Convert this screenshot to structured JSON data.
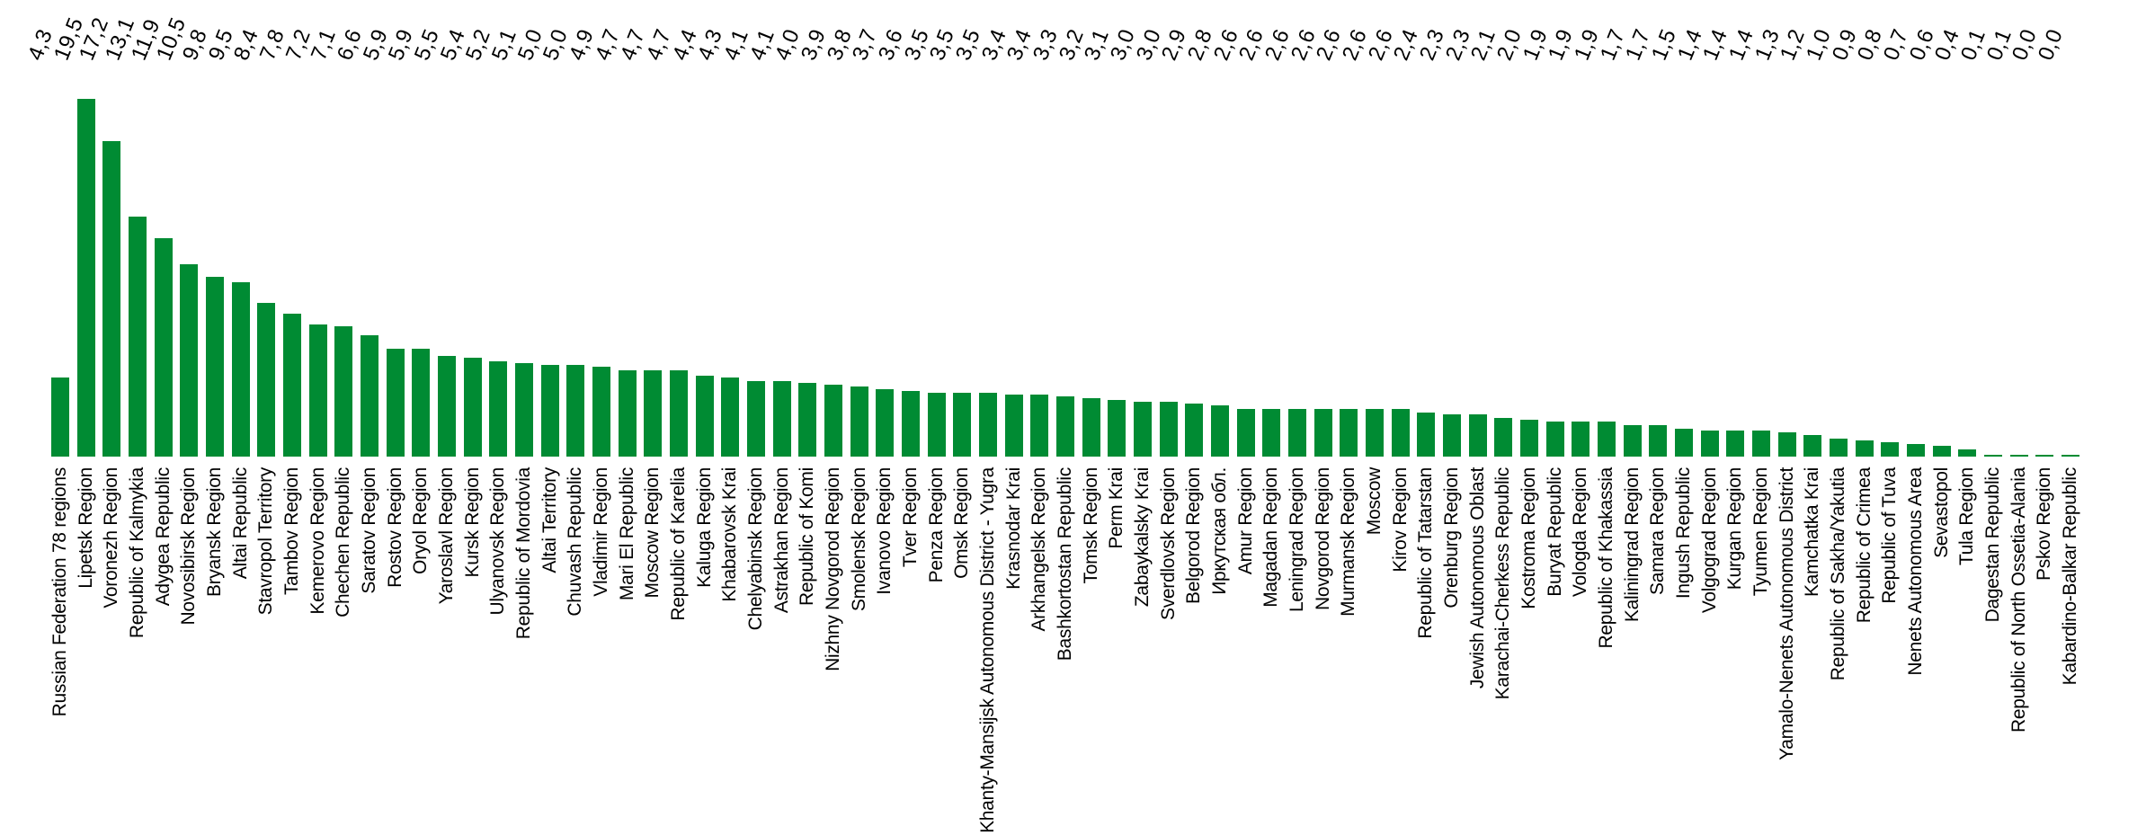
{
  "chart_data": {
    "type": "bar",
    "title": "",
    "xlabel": "",
    "ylabel": "",
    "legend": null,
    "grid": false,
    "axis_lines_visible": false,
    "background_color": "#ffffff",
    "bar_color": "#008B33",
    "label_color": "#000000",
    "value_label_decimal_separator": ",",
    "value_labels_rotation_deg": -68,
    "category_labels_rotation_deg": -90,
    "ylim": [
      0,
      19.5
    ],
    "categories": [
      "Russian Federation 78 regions",
      "Lipetsk Region",
      "Voronezh Region",
      "Republic of Kalmykia",
      "Adygea Republic",
      "Novosibirsk Region",
      "Bryansk Region",
      "Altai Republic",
      "Stavropol Territory",
      "Tambov Region",
      "Kemerovo Region",
      "Chechen Republic",
      "Saratov Region",
      "Rostov Region",
      "Oryol Region",
      "Yaroslavl Region",
      "Kursk Region",
      "Ulyanovsk Region",
      "Republic of Mordovia",
      "Altai Territory",
      "Chuvash Republic",
      "Vladimir Region",
      "Mari El Republic",
      "Moscow Region",
      "Republic of Karelia",
      "Kaluga Region",
      "Khabarovsk Krai",
      "Chelyabinsk Region",
      "Astrakhan Region",
      "Republic of Komi",
      "Nizhny Novgorod Region",
      "Smolensk Region",
      "Ivanovo Region",
      "Tver Region",
      "Penza Region",
      "Omsk Region",
      "Khanty-Mansijsk Autonomous District - Yugra",
      "Krasnodar Krai",
      "Arkhangelsk Region",
      "Bashkortostan Republic",
      "Tomsk Region",
      "Perm Krai",
      "Zabaykalsky Krai",
      "Sverdlovsk Region",
      "Belgorod Region",
      "Иркутская обл.",
      "Amur Region",
      "Magadan Region",
      "Leningrad Region",
      "Novgorod Region",
      "Murmansk Region",
      "Moscow",
      "Kirov Region",
      "Republic of Tatarstan",
      "Orenburg Region",
      "Jewish Autonomous Oblast",
      "Karachai-Cherkess Republic",
      "Kostroma Region",
      "Buryat Republic",
      "Vologda Region",
      "Republic of Khakassia",
      "Kaliningrad Region",
      "Samara Region",
      "Ingush Republic",
      "Volgograd Region",
      "Kurgan Region",
      "Tyumen Region",
      "Yamalo-Nenets Autonomous District",
      "Kamchatka Krai",
      "Republic of Sakha/Yakutia",
      "Republic of Crimea",
      "Republic of Tuva",
      "Nenets Autonomous Area",
      "Sevastopol",
      "Tula Region",
      "Dagestan Republic",
      "Republic of North Ossetia-Alania",
      "Pskov Region",
      "Kabardino-Balkar Republic"
    ],
    "values": [
      4.3,
      19.5,
      17.2,
      13.1,
      11.9,
      10.5,
      9.8,
      9.5,
      8.4,
      7.8,
      7.2,
      7.1,
      6.6,
      5.9,
      5.9,
      5.5,
      5.4,
      5.2,
      5.1,
      5.0,
      5.0,
      4.9,
      4.7,
      4.7,
      4.7,
      4.4,
      4.3,
      4.1,
      4.1,
      4.0,
      3.9,
      3.8,
      3.7,
      3.6,
      3.5,
      3.5,
      3.5,
      3.4,
      3.4,
      3.3,
      3.2,
      3.1,
      3.0,
      3.0,
      2.9,
      2.8,
      2.6,
      2.6,
      2.6,
      2.6,
      2.6,
      2.6,
      2.6,
      2.4,
      2.3,
      2.3,
      2.1,
      2.0,
      1.9,
      1.9,
      1.9,
      1.7,
      1.7,
      1.5,
      1.4,
      1.4,
      1.4,
      1.3,
      1.2,
      1.0,
      0.9,
      0.8,
      0.7,
      0.6,
      0.4,
      0.1,
      0.1,
      0.0,
      0.0
    ]
  }
}
